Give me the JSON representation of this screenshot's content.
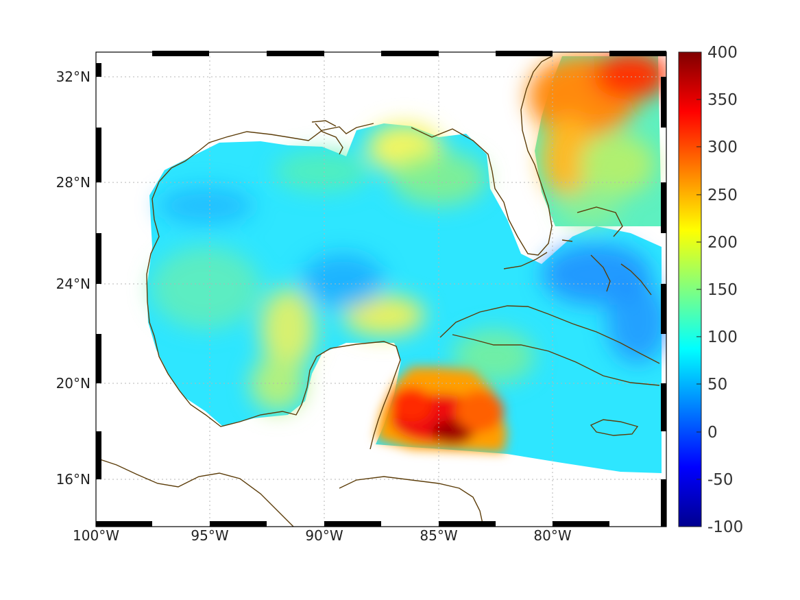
{
  "map": {
    "projection": "Mercator",
    "region": "Gulf of Mexico / Caribbean",
    "lon_range": [
      -100,
      -75
    ],
    "lat_range": [
      14.3,
      33
    ],
    "grid": true,
    "frame": "black-white alternating border",
    "coastline_color": "#5c3d0a",
    "colormap": "jet",
    "lon_ticks": [
      {
        "value": -100,
        "label": "100°W"
      },
      {
        "value": -95,
        "label": "95°W"
      },
      {
        "value": -90,
        "label": "90°W"
      },
      {
        "value": -85,
        "label": "85°W"
      },
      {
        "value": -80,
        "label": "80°W"
      }
    ],
    "lat_ticks": [
      {
        "value": 32,
        "label": "32°N"
      },
      {
        "value": 28,
        "label": "28°N"
      },
      {
        "value": 24,
        "label": "24°N"
      },
      {
        "value": 20,
        "label": "20°N"
      },
      {
        "value": 16,
        "label": "16°N"
      }
    ]
  },
  "colorbar": {
    "min": -100,
    "max": 400,
    "ticks": [
      {
        "value": 400,
        "label": "400"
      },
      {
        "value": 350,
        "label": "350"
      },
      {
        "value": 300,
        "label": "300"
      },
      {
        "value": 250,
        "label": "250"
      },
      {
        "value": 200,
        "label": "200"
      },
      {
        "value": 150,
        "label": "150"
      },
      {
        "value": 100,
        "label": "100"
      },
      {
        "value": 50,
        "label": "50"
      },
      {
        "value": 0,
        "label": "0"
      },
      {
        "value": -50,
        "label": "-50"
      },
      {
        "value": -100,
        "label": "-100"
      }
    ]
  }
}
